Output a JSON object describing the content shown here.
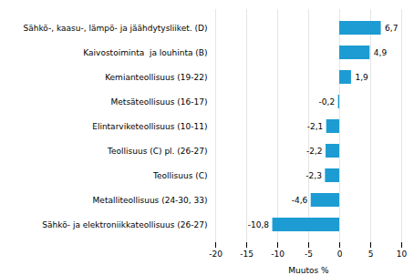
{
  "chart_data": {
    "type": "bar",
    "orientation": "horizontal",
    "categories": [
      "Sähkö- ja elektroniikkateollisuus (26-27)",
      "Metalliteollisuus (24-30, 33)",
      "Teollisuus (C)",
      "Teollisuus (C) pl. (26-27)",
      "Elintarviketeollisuus (10-11)",
      "Metsäteollisuus (16-17)",
      "Kemianteollisuus (19-22)",
      "Kaivostoiminta  ja louhinta (B)",
      "Sähkö-, kaasu-, lämpö- ja jäähdytysliiket. (D)"
    ],
    "values": [
      -10.8,
      -4.6,
      -2.3,
      -2.2,
      -2.1,
      -0.2,
      1.9,
      4.9,
      6.7
    ],
    "value_labels": [
      "-10,8",
      "-4,6",
      "-2,3",
      "-2,2",
      "-2,1",
      "-0,2",
      "1,9",
      "4,9",
      "6,7"
    ],
    "data_labels": true,
    "color": "#1c9cd2",
    "xlabel": "Muutos %",
    "xlim": [
      -20,
      10
    ],
    "xticks": [
      -20,
      -15,
      -10,
      -5,
      0,
      5,
      10
    ],
    "grid": true
  }
}
